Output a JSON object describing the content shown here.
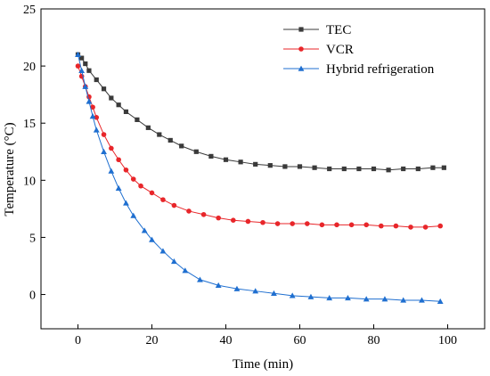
{
  "chart_data": {
    "type": "line",
    "xlabel": "Time (min)",
    "ylabel": "Temperature (°C)",
    "xlim": [
      -10,
      110
    ],
    "ylim": [
      -3,
      25
    ],
    "xticks": [
      0,
      20,
      40,
      60,
      80,
      100
    ],
    "yticks": [
      0,
      5,
      10,
      15,
      20,
      25
    ],
    "grid": false,
    "legend_position": "top-right",
    "series": [
      {
        "name": "TEC",
        "color": "#3a3a3a",
        "marker": "square",
        "x": [
          0,
          1,
          2,
          3,
          5,
          7,
          9,
          11,
          13,
          16,
          19,
          22,
          25,
          28,
          32,
          36,
          40,
          44,
          48,
          52,
          56,
          60,
          64,
          68,
          72,
          76,
          80,
          84,
          88,
          92,
          96,
          99
        ],
        "y": [
          21.0,
          20.7,
          20.2,
          19.6,
          18.8,
          18.0,
          17.2,
          16.6,
          16.0,
          15.3,
          14.6,
          14.0,
          13.5,
          13.0,
          12.5,
          12.1,
          11.8,
          11.6,
          11.4,
          11.3,
          11.2,
          11.2,
          11.1,
          11.0,
          11.0,
          11.0,
          11.0,
          10.9,
          11.0,
          11.0,
          11.1,
          11.1
        ]
      },
      {
        "name": "VCR",
        "color": "#e8262a",
        "marker": "circle",
        "x": [
          0,
          1,
          2,
          3,
          4,
          5,
          7,
          9,
          11,
          13,
          15,
          17,
          20,
          23,
          26,
          30,
          34,
          38,
          42,
          46,
          50,
          54,
          58,
          62,
          66,
          70,
          74,
          78,
          82,
          86,
          90,
          94,
          98
        ],
        "y": [
          20.0,
          19.1,
          18.2,
          17.3,
          16.4,
          15.5,
          14.0,
          12.8,
          11.8,
          10.9,
          10.1,
          9.5,
          8.9,
          8.3,
          7.8,
          7.3,
          7.0,
          6.7,
          6.5,
          6.4,
          6.3,
          6.2,
          6.2,
          6.2,
          6.1,
          6.1,
          6.1,
          6.1,
          6.0,
          6.0,
          5.9,
          5.9,
          6.0
        ]
      },
      {
        "name": "Hybrid refrigeration",
        "color": "#1f6fd0",
        "marker": "triangle",
        "x": [
          0,
          1,
          2,
          3,
          4,
          5,
          7,
          9,
          11,
          13,
          15,
          18,
          20,
          23,
          26,
          29,
          33,
          38,
          43,
          48,
          53,
          58,
          63,
          68,
          73,
          78,
          83,
          88,
          93,
          98
        ],
        "y": [
          21.0,
          19.6,
          18.2,
          16.9,
          15.6,
          14.4,
          12.5,
          10.8,
          9.3,
          8.0,
          6.9,
          5.6,
          4.8,
          3.8,
          2.9,
          2.1,
          1.3,
          0.8,
          0.5,
          0.3,
          0.1,
          -0.1,
          -0.2,
          -0.3,
          -0.3,
          -0.4,
          -0.4,
          -0.5,
          -0.5,
          -0.6
        ]
      }
    ]
  }
}
